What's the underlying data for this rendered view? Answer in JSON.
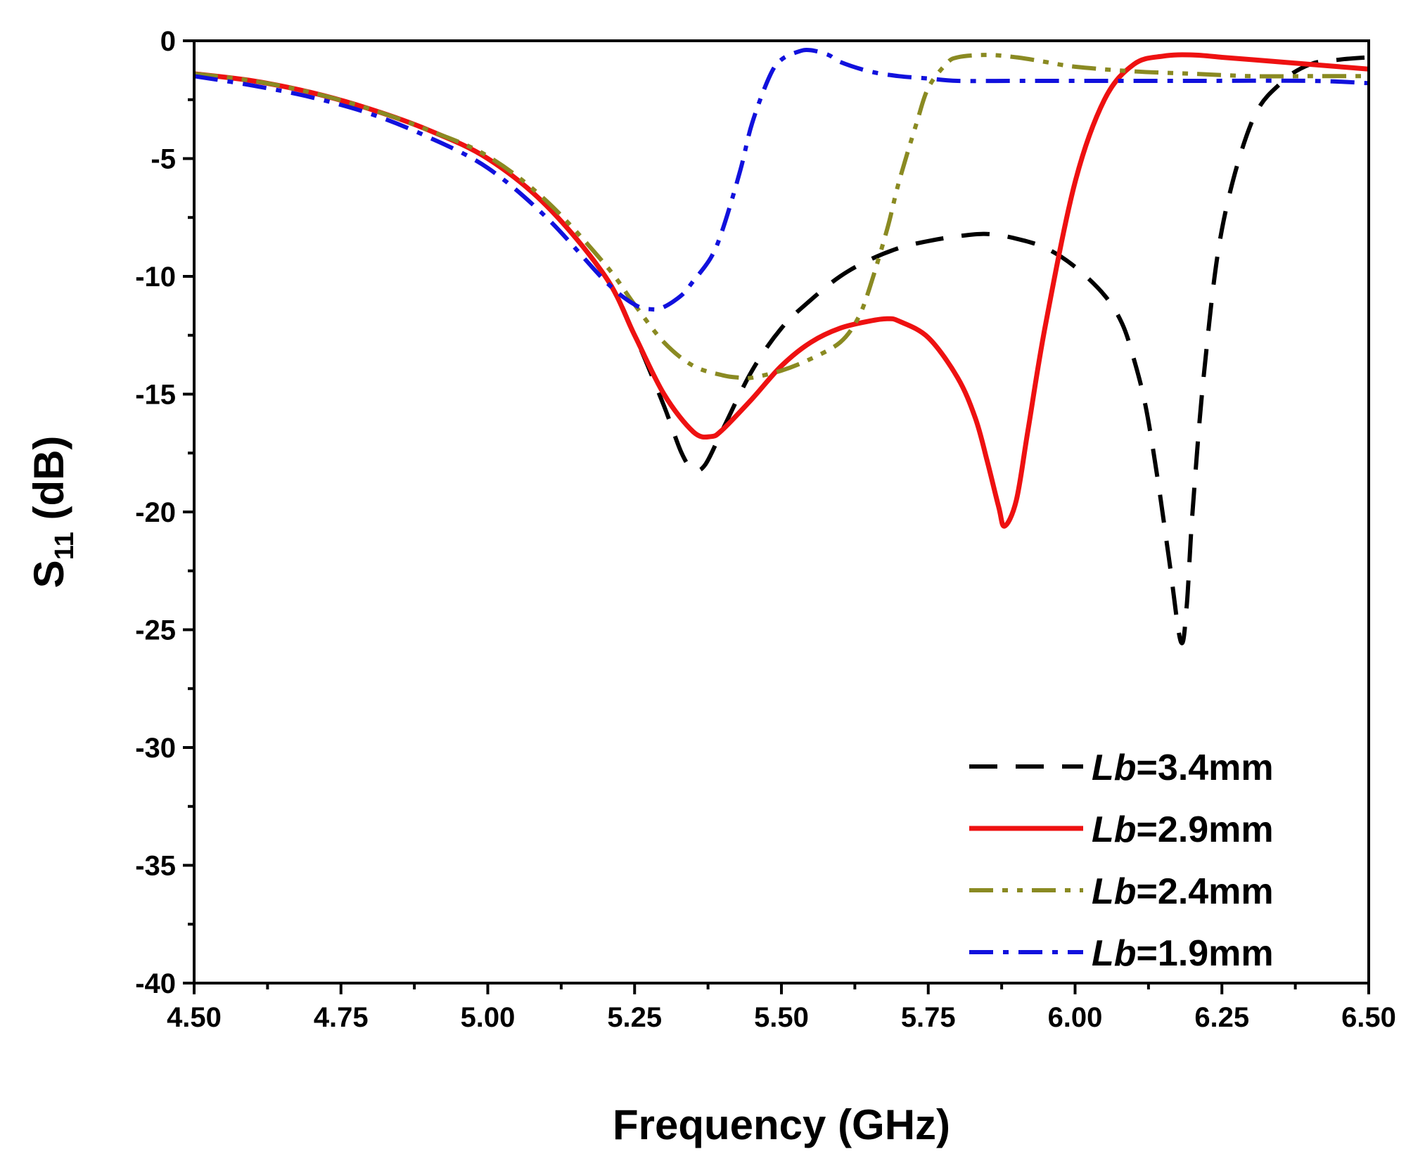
{
  "chart_data": {
    "type": "line",
    "title": "",
    "xlabel": "Frequency (GHz)",
    "ylabel_main": "S",
    "ylabel_sub": "11",
    "ylabel_unit": " (dB)",
    "xlim": [
      4.5,
      6.5
    ],
    "ylim": [
      -40,
      0
    ],
    "xticks": [
      "4.50",
      "4.75",
      "5.00",
      "5.25",
      "5.50",
      "5.75",
      "6.00",
      "6.25",
      "6.50"
    ],
    "yticks": [
      "0",
      "-5",
      "-10",
      "-15",
      "-20",
      "-25",
      "-30",
      "-35",
      "-40"
    ],
    "grid": false,
    "legend_position": "bottom-right",
    "series": [
      {
        "name": "Lb=3.4mm",
        "prefix": "Lb",
        "suffix": "=3.4mm",
        "color": "#000000",
        "style": "dash",
        "x": [
          4.5,
          4.6,
          4.7,
          4.8,
          4.9,
          5.0,
          5.1,
          5.2,
          5.25,
          5.3,
          5.33,
          5.35,
          5.37,
          5.4,
          5.45,
          5.5,
          5.55,
          5.6,
          5.65,
          5.7,
          5.75,
          5.8,
          5.85,
          5.9,
          5.95,
          6.0,
          6.05,
          6.08,
          6.1,
          6.12,
          6.14,
          6.16,
          6.18,
          6.19,
          6.2,
          6.22,
          6.25,
          6.3,
          6.35,
          6.4,
          6.45,
          6.5
        ],
        "y": [
          -1.4,
          -1.7,
          -2.2,
          -2.9,
          -3.8,
          -5.0,
          -7.0,
          -10.0,
          -12.5,
          -15.5,
          -17.5,
          -18.2,
          -18.0,
          -16.5,
          -14.0,
          -12.2,
          -11.0,
          -10.0,
          -9.3,
          -8.8,
          -8.5,
          -8.3,
          -8.2,
          -8.4,
          -8.8,
          -9.6,
          -10.8,
          -12.0,
          -13.5,
          -15.5,
          -18.5,
          -22.0,
          -25.5,
          -24.0,
          -20.0,
          -14.0,
          -8.0,
          -3.5,
          -1.8,
          -1.0,
          -0.8,
          -0.7
        ]
      },
      {
        "name": "Lb=2.9mm",
        "prefix": "Lb",
        "suffix": "=2.9mm",
        "color": "#ee1111",
        "style": "solid",
        "x": [
          4.5,
          4.6,
          4.7,
          4.8,
          4.9,
          5.0,
          5.1,
          5.2,
          5.25,
          5.3,
          5.35,
          5.38,
          5.4,
          5.45,
          5.5,
          5.55,
          5.6,
          5.65,
          5.68,
          5.7,
          5.75,
          5.8,
          5.83,
          5.85,
          5.87,
          5.88,
          5.9,
          5.92,
          5.95,
          6.0,
          6.05,
          6.1,
          6.15,
          6.2,
          6.25,
          6.3,
          6.35,
          6.4,
          6.45,
          6.5
        ],
        "y": [
          -1.4,
          -1.7,
          -2.2,
          -2.9,
          -3.8,
          -5.0,
          -7.0,
          -10.0,
          -12.5,
          -15.0,
          -16.6,
          -16.8,
          -16.5,
          -15.2,
          -13.8,
          -12.8,
          -12.2,
          -11.9,
          -11.8,
          -11.9,
          -12.6,
          -14.3,
          -16.0,
          -17.8,
          -19.8,
          -20.6,
          -19.5,
          -16.5,
          -12.0,
          -6.0,
          -2.5,
          -1.0,
          -0.65,
          -0.6,
          -0.7,
          -0.8,
          -0.9,
          -1.0,
          -1.1,
          -1.2
        ]
      },
      {
        "name": "Lb=2.4mm",
        "prefix": "Lb",
        "suffix": "=2.4mm",
        "color": "#8a8a22",
        "style": "dash-dot-dot",
        "x": [
          4.5,
          4.6,
          4.7,
          4.8,
          4.9,
          5.0,
          5.1,
          5.2,
          5.25,
          5.3,
          5.35,
          5.4,
          5.43,
          5.45,
          5.5,
          5.55,
          5.6,
          5.63,
          5.65,
          5.68,
          5.7,
          5.73,
          5.75,
          5.78,
          5.8,
          5.85,
          5.9,
          5.95,
          6.0,
          6.1,
          6.2,
          6.3,
          6.4,
          6.5
        ],
        "y": [
          -1.4,
          -1.7,
          -2.2,
          -2.9,
          -3.8,
          -4.9,
          -6.8,
          -9.5,
          -11.2,
          -12.8,
          -13.8,
          -14.2,
          -14.3,
          -14.3,
          -14.0,
          -13.5,
          -12.8,
          -11.8,
          -10.5,
          -8.0,
          -6.0,
          -3.5,
          -2.0,
          -1.0,
          -0.7,
          -0.6,
          -0.7,
          -0.9,
          -1.1,
          -1.3,
          -1.4,
          -1.5,
          -1.5,
          -1.5
        ]
      },
      {
        "name": "Lb=1.9mm",
        "prefix": "Lb",
        "suffix": "=1.9mm",
        "color": "#1111dd",
        "style": "dash-dot",
        "x": [
          4.5,
          4.6,
          4.7,
          4.8,
          4.9,
          5.0,
          5.1,
          5.2,
          5.25,
          5.28,
          5.3,
          5.33,
          5.35,
          5.38,
          5.4,
          5.43,
          5.45,
          5.48,
          5.5,
          5.53,
          5.55,
          5.58,
          5.6,
          5.65,
          5.7,
          5.75,
          5.8,
          5.9,
          6.0,
          6.2,
          6.4,
          6.5
        ],
        "y": [
          -1.5,
          -1.9,
          -2.4,
          -3.1,
          -4.1,
          -5.4,
          -7.5,
          -10.2,
          -11.2,
          -11.4,
          -11.3,
          -10.8,
          -10.2,
          -9.2,
          -8.0,
          -5.5,
          -3.5,
          -1.5,
          -0.8,
          -0.45,
          -0.4,
          -0.6,
          -0.9,
          -1.3,
          -1.5,
          -1.6,
          -1.7,
          -1.7,
          -1.7,
          -1.7,
          -1.7,
          -1.8
        ]
      }
    ]
  }
}
